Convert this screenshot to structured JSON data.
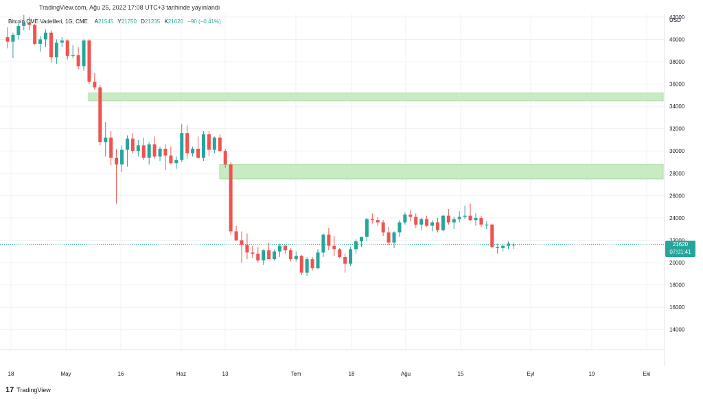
{
  "header": {
    "published": "TradingView.com, Ağu 25, 2022 17:08 UTC+3 tarihinde yayınlandı"
  },
  "legend": {
    "symbol": "Bitcoin CME Vadelileri, 1G, CME",
    "open_label": "A",
    "open": "21545",
    "high_label": "Y",
    "high": "21750",
    "low_label": "D",
    "low": "21235",
    "close_label": "K",
    "close": "21620",
    "change": "−90 (−0.41%)"
  },
  "price_axis": {
    "currency": "USD",
    "last_price": "21620",
    "countdown": "07:01:41"
  },
  "footer": {
    "brand": "TradingView"
  },
  "colors": {
    "up": "#26a69a",
    "down": "#ef5350",
    "zone": "#c8ebc4",
    "zone_border": "#a6d9a0",
    "grid": "#eef0f3",
    "last_price_line": "#26a69a"
  },
  "chart_data": {
    "type": "candlestick",
    "title": "Bitcoin CME Vadelileri, 1G, CME",
    "y_ticks": [
      14000,
      16000,
      18000,
      20000,
      22000,
      24000,
      26000,
      28000,
      30000,
      32000,
      34000,
      36000,
      38000,
      40000,
      42000
    ],
    "x_ticks": [
      "18",
      "May",
      "16",
      "Haz",
      "13",
      "Tem",
      "18",
      "Ağu",
      "15",
      "Eyl",
      "19",
      "Eki"
    ],
    "ylim": [
      12200,
      42300
    ],
    "grid": true,
    "zones": [
      {
        "low": 34500,
        "high": 35200
      },
      {
        "low": 27500,
        "high": 28800
      }
    ],
    "last_price": 21620,
    "candles": [
      [
        40200,
        41100,
        39200,
        39800
      ],
      [
        39800,
        40600,
        38300,
        40400
      ],
      [
        40400,
        41400,
        40000,
        41200
      ],
      [
        41200,
        42200,
        40800,
        41500
      ],
      [
        41500,
        42000,
        40800,
        41300
      ],
      [
        41300,
        41400,
        39500,
        39600
      ],
      [
        39600,
        40300,
        38900,
        40000
      ],
      [
        40000,
        40900,
        39300,
        40600
      ],
      [
        40600,
        40800,
        37900,
        38400
      ],
      [
        38400,
        40000,
        37800,
        39700
      ],
      [
        39700,
        40200,
        39300,
        39900
      ],
      [
        39900,
        40000,
        38200,
        38500
      ],
      [
        38500,
        39500,
        38300,
        38600
      ],
      [
        38600,
        39300,
        37300,
        37600
      ],
      [
        37600,
        40000,
        37200,
        39900
      ],
      [
        39900,
        40000,
        36000,
        36200
      ],
      [
        36200,
        37000,
        35500,
        35700
      ],
      [
        35700,
        35900,
        30500,
        30800
      ],
      [
        30800,
        32600,
        29500,
        31200
      ],
      [
        31200,
        31800,
        28700,
        29400
      ],
      [
        29400,
        30200,
        25300,
        28800
      ],
      [
        28800,
        30500,
        28100,
        30100
      ],
      [
        30100,
        31400,
        28600,
        31100
      ],
      [
        31100,
        31600,
        29800,
        30000
      ],
      [
        30000,
        31000,
        29500,
        30500
      ],
      [
        30500,
        31200,
        29200,
        29400
      ],
      [
        29400,
        30800,
        28800,
        30600
      ],
      [
        30600,
        31300,
        29300,
        29500
      ],
      [
        29500,
        30400,
        29100,
        30200
      ],
      [
        30200,
        30600,
        28300,
        29600
      ],
      [
        29600,
        30400,
        28800,
        28900
      ],
      [
        28900,
        29500,
        28400,
        29200
      ],
      [
        29200,
        32400,
        29000,
        31600
      ],
      [
        31600,
        32300,
        29300,
        29800
      ],
      [
        29800,
        30400,
        29500,
        30200
      ],
      [
        30200,
        31300,
        29300,
        29400
      ],
      [
        29400,
        31800,
        29100,
        31500
      ],
      [
        31500,
        31800,
        29500,
        30100
      ],
      [
        30100,
        31300,
        29800,
        31200
      ],
      [
        31200,
        31500,
        29900,
        30000
      ],
      [
        30000,
        30200,
        28500,
        28800
      ],
      [
        28800,
        29000,
        22500,
        22800
      ],
      [
        22800,
        23300,
        21900,
        22000
      ],
      [
        22000,
        22800,
        20000,
        21600
      ],
      [
        21600,
        22600,
        20300,
        20900
      ],
      [
        20900,
        21500,
        20400,
        20800
      ],
      [
        20800,
        21400,
        20000,
        20200
      ],
      [
        20200,
        21200,
        19800,
        21100
      ],
      [
        21100,
        21800,
        20300,
        20300
      ],
      [
        20300,
        21200,
        20200,
        21000
      ],
      [
        21000,
        21700,
        20500,
        21500
      ],
      [
        21500,
        21600,
        20800,
        21100
      ],
      [
        21100,
        21300,
        20100,
        20300
      ],
      [
        20300,
        21000,
        20100,
        20600
      ],
      [
        20600,
        20700,
        18900,
        19100
      ],
      [
        19100,
        20500,
        18800,
        20300
      ],
      [
        20300,
        20500,
        19300,
        19500
      ],
      [
        19500,
        21200,
        19400,
        20900
      ],
      [
        20900,
        22600,
        20500,
        22500
      ],
      [
        22500,
        23100,
        21100,
        21500
      ],
      [
        21500,
        22400,
        20600,
        21200
      ],
      [
        21200,
        21300,
        20400,
        20500
      ],
      [
        20500,
        20800,
        19100,
        19900
      ],
      [
        19900,
        21400,
        19700,
        21200
      ],
      [
        21200,
        22100,
        20800,
        21900
      ],
      [
        21900,
        22300,
        21400,
        22300
      ],
      [
        22300,
        24000,
        21900,
        23900
      ],
      [
        23900,
        24400,
        23500,
        23800
      ],
      [
        23800,
        24100,
        23300,
        23600
      ],
      [
        23600,
        23800,
        22400,
        22700
      ],
      [
        22700,
        23200,
        21600,
        21800
      ],
      [
        21800,
        22800,
        21300,
        22700
      ],
      [
        22700,
        23800,
        22300,
        23600
      ],
      [
        23600,
        24500,
        23400,
        24300
      ],
      [
        24300,
        24700,
        23700,
        24100
      ],
      [
        24100,
        24400,
        23100,
        23400
      ],
      [
        23400,
        24000,
        22900,
        23900
      ],
      [
        23900,
        24200,
        23200,
        23300
      ],
      [
        23300,
        23800,
        22800,
        23600
      ],
      [
        23600,
        24000,
        22700,
        22900
      ],
      [
        22900,
        24300,
        22800,
        24200
      ],
      [
        24200,
        24800,
        23400,
        23600
      ],
      [
        23600,
        24100,
        23000,
        23900
      ],
      [
        23900,
        24600,
        23600,
        24100
      ],
      [
        24100,
        25100,
        23900,
        24200
      ],
      [
        24200,
        25300,
        23700,
        23800
      ],
      [
        23800,
        24400,
        23300,
        24000
      ],
      [
        24000,
        24200,
        23200,
        23400
      ],
      [
        23400,
        23700,
        23000,
        23400
      ],
      [
        23400,
        23500,
        21300,
        21400
      ],
      [
        21400,
        21700,
        20800,
        21300
      ],
      [
        21300,
        21700,
        21000,
        21500
      ],
      [
        21500,
        21900,
        21200,
        21700
      ],
      [
        21545,
        21750,
        21235,
        21620
      ]
    ]
  }
}
